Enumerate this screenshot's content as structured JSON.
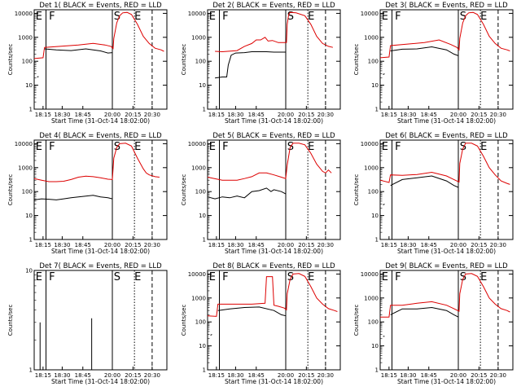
{
  "chart_data": [
    {
      "type": "line",
      "title": "Det 1( BLACK = Events, RED = LLD",
      "markers": [
        "E",
        "F",
        "S",
        "E"
      ],
      "red": [
        [
          0,
          130
        ],
        [
          6,
          140
        ],
        [
          7,
          380
        ],
        [
          30,
          480
        ],
        [
          40,
          560
        ],
        [
          48,
          480
        ],
        [
          52,
          420
        ],
        [
          53.5,
          340
        ],
        [
          54,
          900
        ],
        [
          56,
          4000
        ],
        [
          58,
          8000
        ],
        [
          60,
          10500
        ],
        [
          63,
          11000
        ],
        [
          66,
          9000
        ],
        [
          70,
          3500
        ],
        [
          74,
          1100
        ],
        [
          78,
          550
        ],
        [
          82,
          350
        ],
        [
          86,
          300
        ],
        [
          88,
          260
        ]
      ],
      "black": [
        [
          2,
          22
        ],
        [
          3,
          23
        ],
        [
          3.1,
          null
        ],
        [
          7,
          330
        ],
        [
          15,
          300
        ],
        [
          25,
          280
        ],
        [
          35,
          330
        ],
        [
          45,
          270
        ],
        [
          50,
          220
        ],
        [
          53,
          230
        ]
      ]
    },
    {
      "type": "line",
      "title": "Det 2( BLACK = Events, RED = LLD",
      "markers": [
        "E",
        "F",
        "S",
        "E"
      ],
      "red": [
        [
          5,
          260
        ],
        [
          10,
          250
        ],
        [
          20,
          280
        ],
        [
          25,
          420
        ],
        [
          30,
          550
        ],
        [
          33,
          780
        ],
        [
          36,
          780
        ],
        [
          39,
          1000
        ],
        [
          41,
          700
        ],
        [
          44,
          740
        ],
        [
          48,
          600
        ],
        [
          52,
          600
        ],
        [
          53.5,
          600
        ],
        [
          54,
          3500
        ],
        [
          55,
          9000
        ],
        [
          56,
          11000
        ],
        [
          60,
          10500
        ],
        [
          66,
          8000
        ],
        [
          70,
          3500
        ],
        [
          74,
          1100
        ],
        [
          78,
          550
        ],
        [
          82,
          420
        ],
        [
          85,
          380
        ]
      ],
      "black": [
        [
          5,
          20
        ],
        [
          10,
          22
        ],
        [
          13,
          22
        ],
        [
          14,
          70
        ],
        [
          16,
          180
        ],
        [
          19,
          220
        ],
        [
          25,
          230
        ],
        [
          30,
          250
        ],
        [
          40,
          250
        ],
        [
          45,
          240
        ],
        [
          53,
          240
        ]
      ]
    },
    {
      "type": "line",
      "title": "Det 3( BLACK = Events, RED = LLD",
      "markers": [
        "E",
        "F",
        "S",
        "E"
      ],
      "red": [
        [
          0,
          140
        ],
        [
          6,
          150
        ],
        [
          7,
          450
        ],
        [
          30,
          600
        ],
        [
          40,
          780
        ],
        [
          48,
          500
        ],
        [
          52,
          380
        ],
        [
          53.5,
          300
        ],
        [
          54,
          900
        ],
        [
          56,
          4000
        ],
        [
          58,
          8000
        ],
        [
          60,
          10500
        ],
        [
          63,
          11000
        ],
        [
          66,
          9000
        ],
        [
          70,
          3500
        ],
        [
          74,
          1100
        ],
        [
          78,
          550
        ],
        [
          82,
          350
        ],
        [
          86,
          300
        ],
        [
          88,
          270
        ]
      ],
      "black": [
        [
          2,
          28
        ],
        [
          3,
          30
        ],
        [
          3.1,
          null
        ],
        [
          7,
          270
        ],
        [
          15,
          320
        ],
        [
          25,
          330
        ],
        [
          35,
          400
        ],
        [
          45,
          300
        ],
        [
          50,
          200
        ],
        [
          53,
          170
        ]
      ]
    },
    {
      "type": "line",
      "title": "Det 4( BLACK = Events, RED = LLD",
      "markers": [
        "E",
        "F",
        "S",
        "E"
      ],
      "red": [
        [
          0,
          350
        ],
        [
          5,
          300
        ],
        [
          10,
          260
        ],
        [
          15,
          260
        ],
        [
          20,
          270
        ],
        [
          25,
          320
        ],
        [
          30,
          400
        ],
        [
          35,
          440
        ],
        [
          40,
          420
        ],
        [
          45,
          380
        ],
        [
          50,
          330
        ],
        [
          53,
          320
        ],
        [
          54,
          2500
        ],
        [
          56,
          7000
        ],
        [
          58,
          10000
        ],
        [
          62,
          10500
        ],
        [
          66,
          8000
        ],
        [
          70,
          2500
        ],
        [
          74,
          900
        ],
        [
          76,
          600
        ],
        [
          78,
          500
        ],
        [
          82,
          420
        ],
        [
          85,
          400
        ]
      ],
      "black": [
        [
          0,
          45
        ],
        [
          5,
          50
        ],
        [
          10,
          48
        ],
        [
          15,
          45
        ],
        [
          20,
          50
        ],
        [
          25,
          55
        ],
        [
          30,
          60
        ],
        [
          35,
          65
        ],
        [
          40,
          70
        ],
        [
          45,
          60
        ],
        [
          50,
          55
        ],
        [
          53,
          50
        ]
      ]
    },
    {
      "type": "line",
      "title": "Det 5( BLACK = Events, RED = LLD",
      "markers": [
        "E",
        "F",
        "S",
        "E"
      ],
      "red": [
        [
          0,
          400
        ],
        [
          10,
          300
        ],
        [
          15,
          300
        ],
        [
          20,
          300
        ],
        [
          25,
          350
        ],
        [
          30,
          420
        ],
        [
          35,
          600
        ],
        [
          40,
          600
        ],
        [
          45,
          500
        ],
        [
          50,
          400
        ],
        [
          53,
          350
        ],
        [
          54,
          1300
        ],
        [
          56,
          7000
        ],
        [
          58,
          10500
        ],
        [
          62,
          10500
        ],
        [
          66,
          9000
        ],
        [
          70,
          4000
        ],
        [
          74,
          1400
        ],
        [
          78,
          700
        ],
        [
          80,
          600
        ],
        [
          82,
          800
        ],
        [
          84,
          600
        ]
      ],
      "black": [
        [
          0,
          60
        ],
        [
          5,
          50
        ],
        [
          10,
          60
        ],
        [
          15,
          55
        ],
        [
          20,
          65
        ],
        [
          25,
          55
        ],
        [
          30,
          100
        ],
        [
          35,
          110
        ],
        [
          40,
          140
        ],
        [
          43,
          100
        ],
        [
          45,
          120
        ],
        [
          50,
          100
        ],
        [
          53,
          80
        ]
      ]
    },
    {
      "type": "line",
      "title": "Det 6( BLACK = Events, RED = LLD",
      "markers": [
        "E",
        "F",
        "S",
        "E"
      ],
      "red": [
        [
          0,
          300
        ],
        [
          6,
          240
        ],
        [
          7,
          500
        ],
        [
          15,
          480
        ],
        [
          25,
          520
        ],
        [
          35,
          640
        ],
        [
          45,
          450
        ],
        [
          50,
          320
        ],
        [
          53.5,
          250
        ],
        [
          54,
          1500
        ],
        [
          56,
          6000
        ],
        [
          58,
          10500
        ],
        [
          62,
          10500
        ],
        [
          66,
          8000
        ],
        [
          70,
          3000
        ],
        [
          74,
          1000
        ],
        [
          78,
          500
        ],
        [
          82,
          280
        ],
        [
          86,
          220
        ],
        [
          88,
          200
        ]
      ],
      "black": [
        [
          2,
          28
        ],
        [
          3,
          30
        ],
        [
          3.1,
          null
        ],
        [
          7,
          180
        ],
        [
          15,
          320
        ],
        [
          25,
          380
        ],
        [
          35,
          450
        ],
        [
          45,
          280
        ],
        [
          50,
          180
        ],
        [
          53,
          150
        ]
      ]
    },
    {
      "type": "line",
      "title": "Det 7( BLACK = Events, RED = LLD",
      "markers": [
        "E",
        "F",
        "S",
        "E"
      ],
      "ymax": 10,
      "red": [],
      "black": []
    },
    {
      "type": "line",
      "title": "Det 8( BLACK = Events, RED = LLD",
      "markers": [
        "E",
        "F",
        "S",
        "E"
      ],
      "red": [
        [
          0,
          180
        ],
        [
          6,
          170
        ],
        [
          7,
          550
        ],
        [
          30,
          550
        ],
        [
          39,
          600
        ],
        [
          40,
          7800
        ],
        [
          42,
          7800
        ],
        [
          44,
          7800
        ],
        [
          45,
          500
        ],
        [
          48,
          450
        ],
        [
          52,
          380
        ],
        [
          53.5,
          320
        ],
        [
          54,
          1500
        ],
        [
          56,
          6000
        ],
        [
          58,
          10000
        ],
        [
          62,
          10500
        ],
        [
          66,
          8000
        ],
        [
          70,
          3000
        ],
        [
          74,
          1000
        ],
        [
          78,
          550
        ],
        [
          82,
          360
        ],
        [
          86,
          300
        ],
        [
          88,
          270
        ]
      ],
      "black": [
        [
          2,
          28
        ],
        [
          3,
          30
        ],
        [
          3.1,
          null
        ],
        [
          7,
          300
        ],
        [
          15,
          350
        ],
        [
          25,
          400
        ],
        [
          35,
          420
        ],
        [
          45,
          300
        ],
        [
          50,
          200
        ],
        [
          53,
          180
        ]
      ]
    },
    {
      "type": "line",
      "title": "Det 9( BLACK = Events, RED = LLD",
      "markers": [
        "E",
        "F",
        "S",
        "E"
      ],
      "red": [
        [
          0,
          160
        ],
        [
          6,
          160
        ],
        [
          7,
          500
        ],
        [
          15,
          500
        ],
        [
          25,
          600
        ],
        [
          35,
          700
        ],
        [
          45,
          500
        ],
        [
          50,
          360
        ],
        [
          53.5,
          280
        ],
        [
          54,
          1500
        ],
        [
          56,
          6000
        ],
        [
          58,
          10000
        ],
        [
          62,
          10500
        ],
        [
          66,
          8000
        ],
        [
          70,
          3000
        ],
        [
          74,
          1000
        ],
        [
          78,
          550
        ],
        [
          82,
          360
        ],
        [
          86,
          300
        ],
        [
          88,
          260
        ]
      ],
      "black": [
        [
          2,
          25
        ],
        [
          3,
          25
        ],
        [
          3.1,
          null
        ],
        [
          7,
          200
        ],
        [
          15,
          350
        ],
        [
          25,
          350
        ],
        [
          35,
          400
        ],
        [
          45,
          300
        ],
        [
          50,
          200
        ],
        [
          53,
          160
        ]
      ]
    }
  ],
  "xticks": [
    "18:15",
    "18:30",
    "18:45",
    "20:00",
    "20:15",
    "20:30"
  ],
  "yticks": [
    "1",
    "10",
    "100",
    "1000",
    "10000"
  ],
  "ylabel": "Counts/sec",
  "xlabel": "Start Time (31-Oct-14 18:02:00)",
  "colors": {
    "red": "#dd0000",
    "black": "#000000"
  }
}
